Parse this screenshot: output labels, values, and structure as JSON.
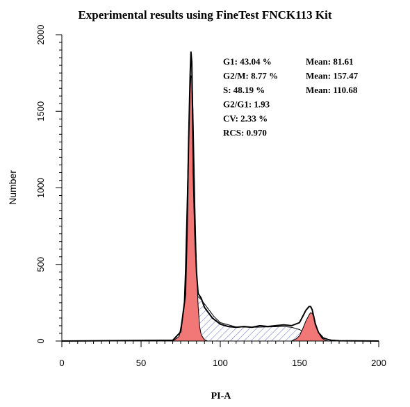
{
  "chart_data": {
    "type": "area",
    "title": "Experimental results using FineTest FNCK113 Kit",
    "xlabel": "PI-A",
    "ylabel": "Number",
    "xlim": [
      0,
      200
    ],
    "ylim": [
      0,
      2000
    ],
    "x_ticks": [
      "0",
      "50",
      "100",
      "150",
      "200"
    ],
    "y_ticks": [
      "0",
      "500",
      "1000",
      "1500",
      "2000"
    ],
    "grid": false,
    "colors": {
      "fit_fill": "#f27878",
      "s_phase_hatch": "#7b7fd4",
      "histogram_line": "#000000"
    },
    "histogram": {
      "x": [
        0,
        70,
        75,
        78,
        79,
        80,
        81,
        81.5,
        82,
        82.5,
        83,
        84,
        85,
        86,
        88,
        90,
        95,
        100,
        105,
        110,
        115,
        120,
        125,
        130,
        135,
        140,
        145,
        150,
        152,
        154,
        156,
        157,
        158,
        159,
        160,
        162,
        165,
        168,
        170,
        175,
        200
      ],
      "y": [
        0,
        5,
        60,
        300,
        700,
        1300,
        1750,
        1890,
        1820,
        1500,
        1100,
        700,
        450,
        310,
        280,
        220,
        150,
        110,
        95,
        90,
        95,
        90,
        100,
        95,
        100,
        105,
        100,
        120,
        160,
        200,
        225,
        225,
        205,
        160,
        110,
        55,
        20,
        10,
        5,
        2,
        0
      ]
    },
    "series": [
      {
        "x": [
          70,
          74,
          77,
          78,
          79,
          80,
          81,
          81.5,
          82,
          82.5,
          83,
          84,
          85,
          86,
          87,
          88,
          90,
          92
        ],
        "y": [
          0,
          30,
          200,
          480,
          900,
          1330,
          1640,
          1730,
          1720,
          1630,
          1420,
          900,
          480,
          230,
          90,
          40,
          8,
          0
        ]
      },
      {
        "x": [
          145,
          148,
          150,
          152,
          154,
          156,
          157,
          158,
          159,
          160,
          162,
          164,
          166,
          168
        ],
        "y": [
          0,
          15,
          35,
          80,
          130,
          170,
          185,
          180,
          160,
          120,
          55,
          20,
          6,
          0
        ]
      },
      {
        "x": [
          75,
          78,
          80,
          82,
          84,
          86,
          88,
          92,
          96,
          100,
          110,
          120,
          130,
          140,
          145,
          150,
          155,
          160,
          165,
          168
        ],
        "y": [
          0,
          20,
          60,
          150,
          270,
          290,
          270,
          215,
          160,
          120,
          92,
          90,
          92,
          95,
          90,
          75,
          45,
          15,
          3,
          0
        ]
      }
    ],
    "stats_left": [
      "G1: 43.04 %",
      "G2/M: 8.77 %",
      "S: 48.19 %",
      "G2/G1: 1.93",
      "CV: 2.33 %",
      "RCS: 0.970"
    ],
    "stats_right": [
      "Mean: 81.61",
      "Mean: 157.47",
      "Mean: 110.68"
    ]
  }
}
